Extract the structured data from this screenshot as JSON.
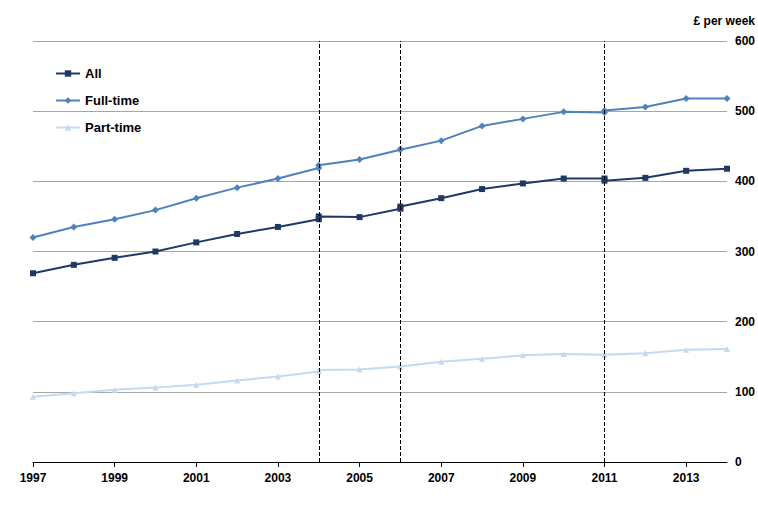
{
  "chart_data": {
    "type": "line",
    "ylabel": "£ per week",
    "x": [
      1997,
      1998,
      1999,
      2000,
      2001,
      2002,
      2003,
      2004,
      2004,
      2005,
      2006,
      2006,
      2007,
      2008,
      2009,
      2010,
      2011,
      2011,
      2012,
      2013,
      2014
    ],
    "series": [
      {
        "name": "All",
        "color": "#1f3864",
        "marker": "square",
        "values": [
          269,
          281,
          291,
          300,
          313,
          325,
          335,
          346,
          350,
          349,
          361,
          364,
          376,
          389,
          397,
          404,
          404,
          401,
          405,
          415,
          418
        ]
      },
      {
        "name": "Full-time",
        "color": "#4f81bd",
        "marker": "diamond",
        "values": [
          320,
          335,
          346,
          359,
          376,
          391,
          404,
          419,
          423,
          431,
          445,
          446,
          458,
          479,
          489,
          499,
          498,
          501,
          506,
          518,
          518
        ]
      },
      {
        "name": "Part-time",
        "color": "#c5d9f1",
        "marker": "triangle",
        "values": [
          93,
          98,
          103,
          106,
          110,
          116,
          122,
          129,
          131,
          132,
          136,
          137,
          143,
          147,
          152,
          154,
          153,
          154,
          155,
          160,
          161
        ]
      }
    ],
    "vertical_lines": [
      2004,
      2006,
      2011
    ],
    "xlim": [
      1997,
      2014
    ],
    "xticks": [
      1997,
      1999,
      2001,
      2003,
      2005,
      2007,
      2009,
      2011,
      2013
    ],
    "ylim": [
      0,
      600
    ],
    "yticks": [
      0,
      100,
      200,
      300,
      400,
      500,
      600
    ],
    "grid": true,
    "legend": "upper left"
  }
}
